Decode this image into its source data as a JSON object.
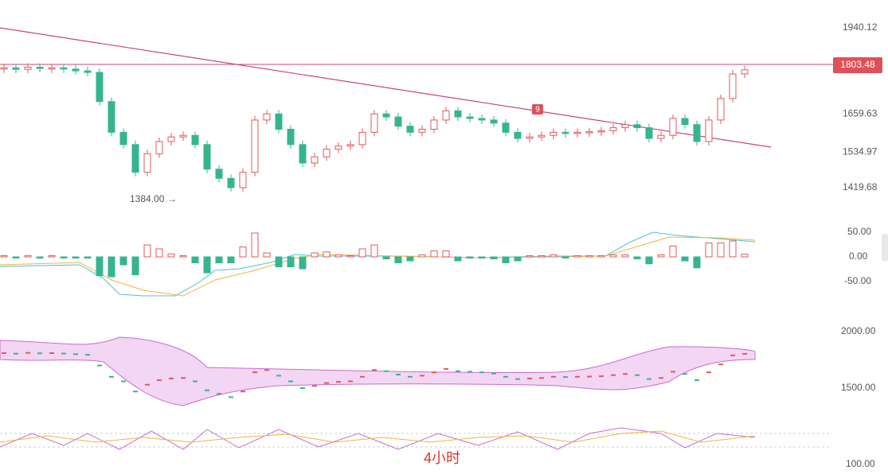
{
  "price_panel": {
    "yticks": [
      1940.12,
      1803.48,
      1659.63,
      1534.97,
      1419.68
    ],
    "current_price": "1803.48",
    "low_label": "1384.00",
    "marker": "9",
    "closes": [
      1810,
      1805,
      1812,
      1808,
      1810,
      1806,
      1800,
      1795,
      1700,
      1600,
      1560,
      1470,
      1530,
      1570,
      1585,
      1590,
      1560,
      1480,
      1450,
      1420,
      1470,
      1640,
      1660,
      1610,
      1560,
      1500,
      1520,
      1545,
      1555,
      1560,
      1600,
      1660,
      1650,
      1620,
      1600,
      1610,
      1640,
      1670,
      1650,
      1645,
      1640,
      1630,
      1600,
      1580,
      1585,
      1590,
      1600,
      1598,
      1600,
      1602,
      1605,
      1615,
      1625,
      1615,
      1580,
      1590,
      1645,
      1625,
      1570,
      1640,
      1710,
      1790,
      1803.48
    ]
  },
  "macd_panel": {
    "yticks": [
      "50.00",
      "0.00",
      "-50.00"
    ]
  },
  "boll_panel": {
    "yticks": [
      "2000.00",
      "1500.00"
    ]
  },
  "kdj_panel": {
    "yticks": [
      "100.00"
    ]
  },
  "footer": {
    "interval": "4小时"
  }
}
